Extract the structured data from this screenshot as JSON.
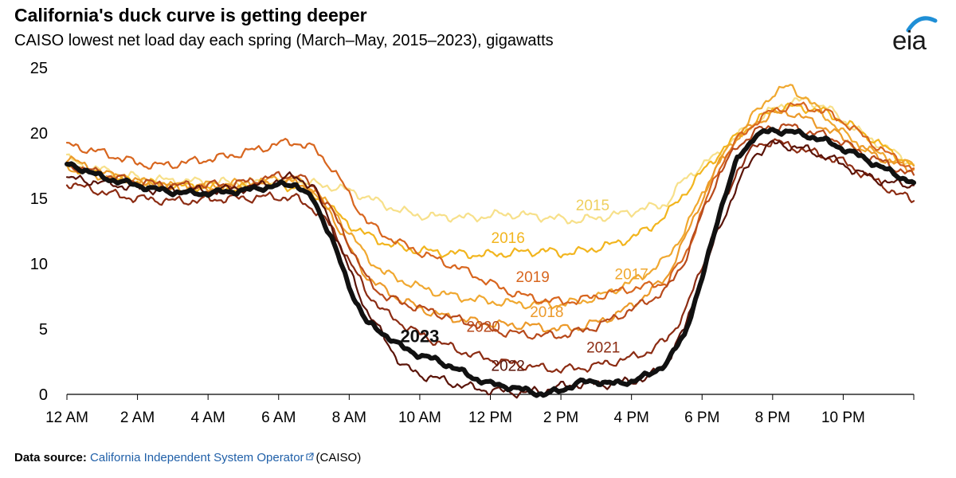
{
  "header": {
    "title": "California's duck curve is getting deeper",
    "subtitle": "CAISO lowest net load day each spring (March–May, 2015–2023), gigawatts"
  },
  "logo": {
    "text": "eia",
    "icon": "eia-logo-icon",
    "accent": "#1f8fd6"
  },
  "source": {
    "label": "Data source:",
    "link_text": "California Independent System Operator",
    "link_icon": "external-link-icon",
    "suffix": "(CAISO)"
  },
  "chart_data": {
    "type": "line",
    "title": "California's duck curve is getting deeper",
    "xlabel": "",
    "ylabel": "",
    "xlim": [
      0,
      24
    ],
    "ylim": [
      0,
      25
    ],
    "yticks": [
      0,
      5,
      10,
      15,
      20,
      25
    ],
    "xticks": [
      {
        "hour": 0,
        "label": "12 AM"
      },
      {
        "hour": 2,
        "label": "2 AM"
      },
      {
        "hour": 4,
        "label": "4 AM"
      },
      {
        "hour": 6,
        "label": "6 AM"
      },
      {
        "hour": 8,
        "label": "8 AM"
      },
      {
        "hour": 10,
        "label": "10 AM"
      },
      {
        "hour": 12,
        "label": "12 PM"
      },
      {
        "hour": 14,
        "label": "2 PM"
      },
      {
        "hour": 16,
        "label": "4 PM"
      },
      {
        "hour": 18,
        "label": "6 PM"
      },
      {
        "hour": 20,
        "label": "8 PM"
      },
      {
        "hour": 22,
        "label": "10 PM"
      }
    ],
    "grid": false,
    "x": [
      0,
      0.5,
      1,
      1.5,
      2,
      2.5,
      3,
      3.5,
      4,
      4.5,
      5,
      5.5,
      6,
      6.5,
      7,
      7.5,
      8,
      8.5,
      9,
      9.5,
      10,
      10.5,
      11,
      11.5,
      12,
      12.5,
      13,
      13.5,
      14,
      14.5,
      15,
      15.5,
      16,
      16.5,
      17,
      17.5,
      18,
      18.5,
      19,
      19.5,
      20,
      20.5,
      21,
      21.5,
      22,
      22.5,
      23,
      23.5,
      24
    ],
    "series": [
      {
        "name": "2015",
        "color": "#f7e08a",
        "width": 2.2,
        "label": {
          "text": "2015",
          "x": 14.9,
          "y": 14.1,
          "weight": "normal"
        },
        "values": [
          18.1,
          17.4,
          17.2,
          16.8,
          16.6,
          16.4,
          16.4,
          16.3,
          16.3,
          16.2,
          16.2,
          16.3,
          16.3,
          16.4,
          16.1,
          15.9,
          15.6,
          15.1,
          14.5,
          14.0,
          13.7,
          13.6,
          13.6,
          13.5,
          13.7,
          13.8,
          13.7,
          13.6,
          13.4,
          13.3,
          13.5,
          13.7,
          14.0,
          14.3,
          14.6,
          16.5,
          17.5,
          18.5,
          19.8,
          20.8,
          21.8,
          22.4,
          22.5,
          22.0,
          21.0,
          20.0,
          19.2,
          18.4,
          17.6
        ]
      },
      {
        "name": "2016",
        "color": "#f2b51e",
        "width": 2.2,
        "label": {
          "text": "2016",
          "x": 12.5,
          "y": 11.6,
          "weight": "normal"
        },
        "values": [
          17.5,
          17.1,
          16.8,
          16.5,
          16.3,
          16.1,
          16.0,
          15.9,
          15.9,
          15.8,
          15.8,
          15.9,
          15.9,
          15.9,
          15.2,
          14.2,
          13.0,
          12.2,
          11.6,
          11.2,
          11.0,
          10.9,
          10.8,
          10.7,
          10.7,
          10.8,
          10.9,
          11.0,
          10.8,
          10.9,
          11.2,
          11.5,
          12.0,
          12.7,
          13.8,
          15.4,
          17.0,
          18.5,
          19.8,
          20.8,
          21.8,
          22.0,
          21.9,
          21.6,
          20.9,
          20.1,
          19.2,
          18.3,
          17.5
        ]
      },
      {
        "name": "2017",
        "color": "#f0a830",
        "width": 2.2,
        "label": {
          "text": "2017",
          "x": 16.0,
          "y": 8.8,
          "weight": "normal"
        },
        "values": [
          17.5,
          17.0,
          16.7,
          16.5,
          16.3,
          16.1,
          16.0,
          16.0,
          16.0,
          16.1,
          16.2,
          16.3,
          16.5,
          16.4,
          15.6,
          14.2,
          12.4,
          10.5,
          9.3,
          8.7,
          8.2,
          7.8,
          7.5,
          7.3,
          7.1,
          7.0,
          6.9,
          6.9,
          6.9,
          7.1,
          7.4,
          8.0,
          8.6,
          9.4,
          10.4,
          12.5,
          15.3,
          17.8,
          19.8,
          21.5,
          23.0,
          23.6,
          22.5,
          21.3,
          20.0,
          19.0,
          18.4,
          17.9,
          17.5
        ]
      },
      {
        "name": "2018",
        "color": "#ec9a2a",
        "width": 2.2,
        "label": {
          "text": "2018",
          "x": 13.6,
          "y": 5.9,
          "weight": "normal"
        },
        "values": [
          18.1,
          17.5,
          17.0,
          16.5,
          16.2,
          16.0,
          15.9,
          15.8,
          15.8,
          15.8,
          15.9,
          16.0,
          16.2,
          16.3,
          15.6,
          13.8,
          11.2,
          9.0,
          8.0,
          7.2,
          6.6,
          6.1,
          5.8,
          5.6,
          5.4,
          5.3,
          5.3,
          5.1,
          5.0,
          5.1,
          5.5,
          6.0,
          6.8,
          7.8,
          9.0,
          11.8,
          15.0,
          17.8,
          19.6,
          20.8,
          21.4,
          21.6,
          21.0,
          20.4,
          19.6,
          18.8,
          18.2,
          17.6,
          17.2
        ]
      },
      {
        "name": "2019",
        "color": "#d8661f",
        "width": 2.2,
        "label": {
          "text": "2019",
          "x": 13.2,
          "y": 8.6,
          "weight": "normal"
        },
        "values": [
          19.1,
          18.8,
          18.5,
          18.1,
          17.7,
          17.5,
          17.6,
          17.8,
          18.0,
          18.2,
          18.5,
          18.8,
          19.2,
          19.3,
          18.8,
          17.4,
          15.3,
          13.2,
          12.2,
          11.5,
          10.9,
          10.3,
          9.8,
          9.2,
          8.5,
          7.9,
          7.5,
          7.2,
          7.1,
          7.2,
          7.5,
          7.8,
          8.1,
          8.3,
          8.6,
          10.5,
          14.0,
          17.5,
          19.5,
          20.8,
          21.7,
          22.1,
          22.0,
          21.6,
          20.9,
          19.9,
          18.9,
          18.0,
          17.3
        ]
      },
      {
        "name": "2020",
        "color": "#b84a1c",
        "width": 2.2,
        "label": {
          "text": "2020",
          "x": 11.8,
          "y": 4.8,
          "weight": "normal"
        },
        "values": [
          17.6,
          17.2,
          16.9,
          16.5,
          16.3,
          16.1,
          16.0,
          16.0,
          16.0,
          16.1,
          16.2,
          16.5,
          16.7,
          16.8,
          15.9,
          14.1,
          11.5,
          8.8,
          7.5,
          7.0,
          6.6,
          6.2,
          5.8,
          5.4,
          5.0,
          4.7,
          4.6,
          4.5,
          4.5,
          4.8,
          5.2,
          5.8,
          6.5,
          7.2,
          8.0,
          10.2,
          13.8,
          16.9,
          19.0,
          20.1,
          20.5,
          20.5,
          20.1,
          19.8,
          19.3,
          18.5,
          17.9,
          17.3,
          16.8
        ]
      },
      {
        "name": "2021",
        "color": "#8c2c13",
        "width": 2.2,
        "label": {
          "text": "2021",
          "x": 15.2,
          "y": 3.2,
          "weight": "normal"
        },
        "values": [
          16.2,
          15.8,
          15.5,
          15.2,
          15.0,
          14.9,
          14.8,
          14.8,
          14.9,
          15.0,
          15.0,
          15.1,
          15.1,
          15.0,
          14.2,
          12.8,
          10.2,
          7.8,
          6.3,
          5.4,
          4.6,
          4.0,
          3.5,
          3.0,
          2.7,
          2.4,
          2.2,
          2.0,
          1.9,
          2.0,
          2.2,
          2.5,
          2.8,
          3.3,
          4.2,
          6.2,
          9.8,
          13.8,
          17.2,
          19.0,
          19.4,
          19.0,
          18.6,
          18.2,
          17.8,
          17.0,
          16.2,
          15.4,
          14.8
        ]
      },
      {
        "name": "2022",
        "color": "#5a1409",
        "width": 2.2,
        "label": {
          "text": "2022",
          "x": 12.5,
          "y": 1.8,
          "weight": "normal"
        },
        "values": [
          16.5,
          16.4,
          16.2,
          16.0,
          15.8,
          15.7,
          15.6,
          15.6,
          15.6,
          15.7,
          15.8,
          16.0,
          16.4,
          16.7,
          15.8,
          13.0,
          9.5,
          6.4,
          4.3,
          2.2,
          1.5,
          1.2,
          0.8,
          0.5,
          0.3,
          0.2,
          0.1,
          0.3,
          0.6,
          0.8,
          0.8,
          0.8,
          1.0,
          1.3,
          2.5,
          5.0,
          9.0,
          12.8,
          16.0,
          18.4,
          19.2,
          19.0,
          18.7,
          18.2,
          17.6,
          16.9,
          16.4,
          16.1,
          16.0
        ]
      },
      {
        "name": "2023",
        "color": "#111111",
        "width": 6,
        "label": {
          "text": "2023",
          "x": 10.0,
          "y": 4.0,
          "weight": "bold"
        },
        "values": [
          17.6,
          17.2,
          16.6,
          16.3,
          16.0,
          15.7,
          15.5,
          15.4,
          15.4,
          15.5,
          15.6,
          15.8,
          16.0,
          16.1,
          14.8,
          12.0,
          8.2,
          5.5,
          4.6,
          3.6,
          3.0,
          2.6,
          2.0,
          1.3,
          0.8,
          0.6,
          0.3,
          0.0,
          0.3,
          0.9,
          1.0,
          0.8,
          1.0,
          1.5,
          2.4,
          4.6,
          8.8,
          14.0,
          18.0,
          19.8,
          20.2,
          20.1,
          19.8,
          19.4,
          18.8,
          18.2,
          17.5,
          16.8,
          16.2
        ]
      }
    ]
  }
}
